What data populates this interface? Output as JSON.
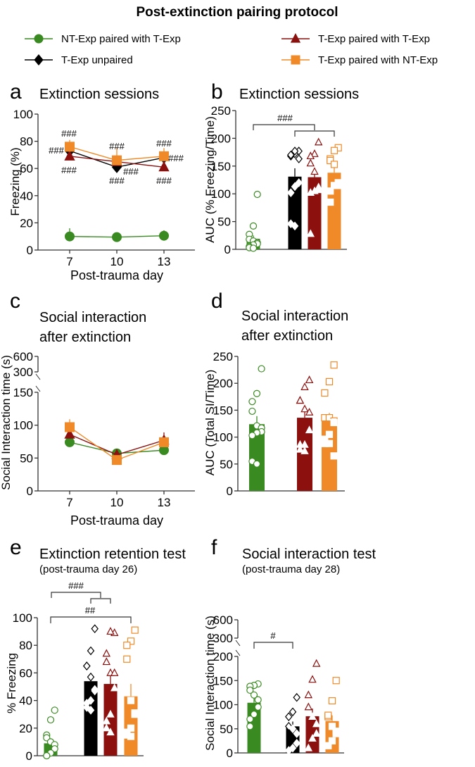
{
  "figure_title": "Post-extinction pairing protocol",
  "colors": {
    "NT-Exp paired with T-Exp": "#3a8a22",
    "T-Exp unpaired": "#000000",
    "T-Exp paired with T-Exp": "#8b100e",
    "T-Exp paired with NT-Exp": "#f08a28"
  },
  "legend": [
    {
      "label": "NT-Exp paired with T-Exp",
      "marker": "circle"
    },
    {
      "label": "T-Exp paired with T-Exp",
      "marker": "triangle"
    },
    {
      "label": "T-Exp unpaired",
      "marker": "diamond"
    },
    {
      "label": "T-Exp paired with NT-Exp",
      "marker": "square"
    }
  ],
  "chart_data": [
    {
      "id": "a",
      "letter": "a",
      "type": "line",
      "title": [
        "Extinction sessions"
      ],
      "xlabel": "Post-trauma day",
      "ylabel": "Freezing (%)",
      "x": [
        7,
        10,
        13
      ],
      "yticks": [
        0,
        20,
        40,
        60,
        80,
        100
      ],
      "ylim": [
        0,
        100
      ],
      "series": [
        {
          "name": "NT-Exp paired with T-Exp",
          "values": [
            10,
            9.5,
            10.5
          ],
          "err": [
            6,
            2,
            4
          ]
        },
        {
          "name": "T-Exp unpaired",
          "values": [
            73,
            61,
            68
          ],
          "err": [
            3,
            3,
            3
          ]
        },
        {
          "name": "T-Exp paired with T-Exp",
          "values": [
            69,
            65,
            61
          ],
          "err": [
            3,
            3,
            3
          ]
        },
        {
          "name": "T-Exp paired with NT-Exp",
          "values": [
            76,
            66,
            69
          ],
          "err": [
            5,
            9,
            6
          ]
        }
      ],
      "annotations": [
        "###",
        "###",
        "###",
        "###",
        "###",
        "###",
        "###",
        "###",
        "###"
      ]
    },
    {
      "id": "b",
      "letter": "b",
      "type": "bar",
      "title": [
        "Extinction sessions"
      ],
      "ylabel": "AUC (% Freezing/Time)",
      "yticks": [
        0,
        50,
        100,
        150,
        200,
        250
      ],
      "ylim": [
        0,
        250
      ],
      "series": [
        {
          "name": "NT-Exp paired with T-Exp",
          "value": 19,
          "err": 6,
          "points": [
            99,
            42,
            27,
            18,
            15,
            12,
            10,
            8,
            5,
            3,
            2
          ]
        },
        {
          "name": "T-Exp unpaired",
          "value": 131,
          "err": 15,
          "points": [
            177,
            172,
            168,
            170,
            177,
            163,
            120,
            113,
            102,
            46,
            42
          ]
        },
        {
          "name": "T-Exp paired with T-Exp",
          "value": 130,
          "err": 14,
          "points": [
            193,
            172,
            168,
            155,
            140,
            112,
            107,
            105,
            102,
            28
          ]
        },
        {
          "name": "T-Exp paired with NT-Exp",
          "value": 138,
          "err": 10,
          "points": [
            183,
            178,
            163,
            160,
            153,
            120,
            115,
            115,
            105,
            85
          ]
        }
      ],
      "annotations": [
        "###"
      ]
    },
    {
      "id": "c",
      "letter": "c",
      "type": "line",
      "title": [
        "Social interaction",
        "after extinction"
      ],
      "xlabel": "Post-trauma day",
      "ylabel": "Social Interaction time (s)",
      "x": [
        7,
        10,
        13
      ],
      "yticks": [
        0,
        50,
        100,
        150,
        300,
        600
      ],
      "ylim": [
        0,
        600
      ],
      "axis_break": [
        150,
        300
      ],
      "series": [
        {
          "name": "NT-Exp paired with T-Exp",
          "values": [
            74,
            57,
            62
          ],
          "err": [
            4,
            5,
            3
          ]
        },
        {
          "name": "T-Exp paired with T-Exp",
          "values": [
            86,
            55,
            77
          ],
          "err": [
            6,
            4,
            12
          ]
        },
        {
          "name": "T-Exp paired with NT-Exp",
          "values": [
            97,
            47,
            74
          ],
          "err": [
            12,
            4,
            6
          ]
        }
      ],
      "annotations": []
    },
    {
      "id": "d",
      "letter": "d",
      "type": "bar",
      "title": [
        "Social interaction",
        "after extinction"
      ],
      "ylabel": "AUC (Total SI/Time)",
      "yticks": [
        0,
        50,
        100,
        150,
        200,
        250
      ],
      "ylim": [
        0,
        250
      ],
      "series": [
        {
          "name": "NT-Exp paired with T-Exp",
          "value": 124,
          "err": 15,
          "points": [
            227,
            181,
            166,
            148,
            121,
            117,
            110,
            108,
            103,
            55,
            50
          ]
        },
        {
          "name": "T-Exp paired with T-Exp",
          "value": 136,
          "err": 12,
          "points": [
            206,
            193,
            168,
            168,
            152,
            146,
            113,
            86,
            86,
            77,
            74
          ]
        },
        {
          "name": "T-Exp paired with NT-Exp",
          "value": 130,
          "err": 15,
          "points": [
            234,
            203,
            182,
            136,
            136,
            130,
            127,
            105,
            96,
            88,
            88,
            65
          ]
        }
      ],
      "annotations": []
    },
    {
      "id": "e",
      "letter": "e",
      "type": "bar",
      "title": [
        "Extinction retention test",
        "(post-trauma  day  26)"
      ],
      "ylabel": "% Freezing",
      "yticks": [
        0,
        20,
        40,
        60,
        80,
        100
      ],
      "ylim": [
        0,
        100
      ],
      "series": [
        {
          "name": "NT-Exp paired with T-Exp",
          "value": 9,
          "err": 3,
          "points": [
            33,
            26,
            15,
            13,
            10,
            8,
            5,
            2,
            0,
            0
          ]
        },
        {
          "name": "T-Exp unpaired",
          "value": 54,
          "err": 6,
          "points": [
            92,
            76,
            65,
            65,
            57,
            48,
            47,
            40,
            38,
            35,
            33
          ]
        },
        {
          "name": "T-Exp paired with T-Exp",
          "value": 52,
          "err": 8,
          "points": [
            89,
            90,
            74,
            68,
            60,
            60,
            49,
            30,
            25,
            20,
            17
          ]
        },
        {
          "name": "T-Exp paired with NT-Exp",
          "value": 43,
          "err": 9,
          "points": [
            91,
            83,
            80,
            70,
            40,
            31,
            30,
            20,
            17,
            15,
            14
          ]
        }
      ],
      "annotations": [
        "###",
        "##"
      ]
    },
    {
      "id": "f",
      "letter": "f",
      "type": "bar",
      "title": [
        "Social interaction test",
        "(post-trauma  day  28)"
      ],
      "ylabel": "Social Interaction time (s)",
      "yticks": [
        0,
        50,
        100,
        150,
        200,
        300,
        600
      ],
      "ylim": [
        0,
        600
      ],
      "axis_break": [
        200,
        300
      ],
      "series": [
        {
          "name": "NT-Exp paired with T-Exp",
          "value": 104,
          "err": 10,
          "points": [
            143,
            140,
            138,
            130,
            120,
            110,
            95,
            80,
            70,
            55
          ]
        },
        {
          "name": "T-Exp unpaired",
          "value": 55,
          "err": 10,
          "points": [
            115,
            85,
            75,
            55,
            50,
            40,
            20,
            10,
            5
          ]
        },
        {
          "name": "T-Exp paired with T-Exp",
          "value": 76,
          "err": 16,
          "points": [
            185,
            152,
            120,
            95,
            75,
            60,
            40,
            30,
            10
          ]
        },
        {
          "name": "T-Exp paired with NT-Exp",
          "value": 66,
          "err": 12,
          "points": [
            150,
            108,
            75,
            78,
            55,
            45,
            40,
            25,
            15
          ]
        }
      ],
      "annotations": [
        "#"
      ]
    }
  ]
}
